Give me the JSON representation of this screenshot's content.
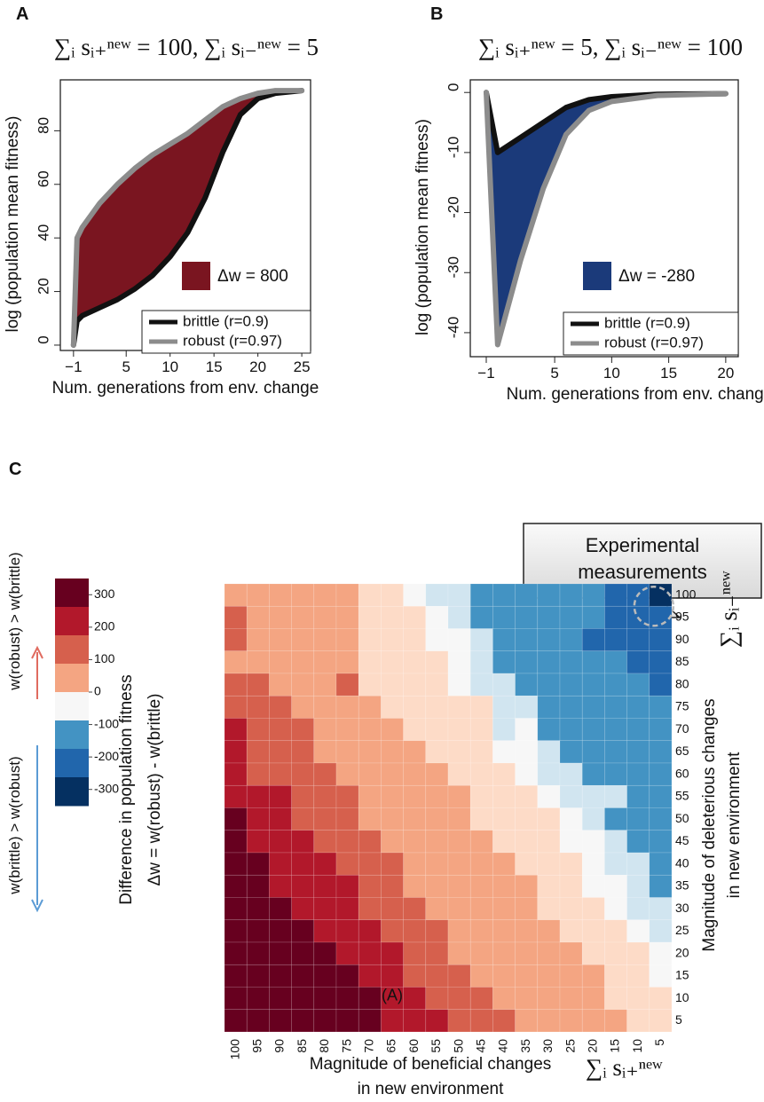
{
  "chart_data": [
    {
      "type": "line",
      "panel_label": "A",
      "title": "∑ᵢ sᵢ₊ⁿᵉʷ = 100, ∑ᵢ sᵢ₋ⁿᵉʷ = 5",
      "xlabel": "Num. generations from env. change",
      "ylabel": "log (population mean fitness)",
      "x": [
        -1,
        -0.6,
        0,
        2,
        4,
        6,
        8,
        10,
        12,
        14,
        16,
        18,
        20,
        22,
        25
      ],
      "series": [
        {
          "name": "brittle (r=0.9)",
          "color": "#111111",
          "values": [
            0,
            9,
            11,
            14,
            17,
            21,
            26,
            33,
            42,
            55,
            72,
            86,
            92,
            94,
            95
          ]
        },
        {
          "name": "robust (r=0.97)",
          "color": "#8c8c8c",
          "values": [
            0,
            40,
            44,
            53,
            60,
            66,
            71,
            75,
            79,
            84,
            89,
            92,
            94,
            95,
            95
          ]
        }
      ],
      "fill_color": "#7a1520",
      "annotation": "Δw = 800",
      "xlim": [
        -2.5,
        26
      ],
      "ylim": [
        -2,
        99
      ],
      "xticks": [
        {
          "value": -1,
          "label": "−1"
        },
        5,
        10,
        15,
        20,
        25
      ],
      "yticks": [
        0,
        20,
        40,
        60,
        80
      ]
    },
    {
      "type": "line",
      "panel_label": "B",
      "title": "∑ᵢ sᵢ₊ⁿᵉʷ = 5, ∑ᵢ sᵢ₋ⁿᵉʷ = 100",
      "xlabel": "Num. generations from env. change",
      "ylabel": "log (population mean fitness)",
      "x": [
        -1,
        0,
        2,
        4,
        6,
        8,
        10,
        14,
        20
      ],
      "series": [
        {
          "name": "brittle (r=0.9)",
          "color": "#111111",
          "values": [
            0,
            -10,
            -7.5,
            -5,
            -2.5,
            -1.2,
            -0.7,
            -0.3,
            -0.2
          ]
        },
        {
          "name": "robust (r=0.97)",
          "color": "#8c8c8c",
          "values": [
            0,
            -42,
            -28,
            -16,
            -7,
            -3,
            -1.5,
            -0.5,
            -0.2
          ]
        }
      ],
      "fill_color": "#1b3a7a",
      "annotation": "Δw = -280",
      "xlim": [
        -2.4,
        21.1
      ],
      "ylim": [
        -44,
        2.1
      ],
      "xticks": [
        {
          "value": -1,
          "label": "−1"
        },
        5,
        10,
        15,
        20
      ],
      "yticks": [
        0,
        -10,
        -20,
        -30,
        -40
      ]
    },
    {
      "type": "heatmap",
      "panel_label": "C",
      "xcategories": [
        100,
        95,
        90,
        85,
        80,
        75,
        70,
        65,
        60,
        55,
        50,
        45,
        40,
        35,
        30,
        25,
        20,
        15,
        10,
        5
      ],
      "ycategories": [
        100,
        95,
        90,
        85,
        80,
        75,
        70,
        65,
        60,
        55,
        50,
        45,
        40,
        35,
        30,
        25,
        20,
        15,
        10,
        5
      ],
      "z": [
        [
          100,
          100,
          100,
          100,
          100,
          100,
          50,
          50,
          0,
          -50,
          -50,
          -100,
          -100,
          -100,
          -100,
          -100,
          -100,
          -200,
          -200,
          -300
        ],
        [
          175,
          100,
          100,
          100,
          100,
          100,
          50,
          50,
          50,
          0,
          -50,
          -100,
          -100,
          -100,
          -100,
          -100,
          -100,
          -200,
          -200,
          -200
        ],
        [
          175,
          100,
          100,
          100,
          100,
          100,
          50,
          50,
          50,
          0,
          0,
          -50,
          -100,
          -100,
          -100,
          -100,
          -200,
          -200,
          -200,
          -200
        ],
        [
          100,
          100,
          100,
          100,
          100,
          100,
          50,
          50,
          50,
          50,
          0,
          -50,
          -100,
          -100,
          -100,
          -100,
          -100,
          -100,
          -200,
          -200
        ],
        [
          175,
          175,
          100,
          100,
          100,
          175,
          50,
          50,
          50,
          50,
          0,
          -50,
          -50,
          -100,
          -100,
          -100,
          -100,
          -100,
          -100,
          -200
        ],
        [
          175,
          175,
          175,
          100,
          100,
          100,
          100,
          50,
          50,
          50,
          50,
          50,
          -50,
          -50,
          -100,
          -100,
          -100,
          -100,
          -100,
          -100
        ],
        [
          225,
          175,
          175,
          175,
          100,
          100,
          100,
          100,
          50,
          50,
          50,
          50,
          -50,
          0,
          -100,
          -100,
          -100,
          -100,
          -100,
          -100
        ],
        [
          225,
          175,
          175,
          175,
          100,
          100,
          100,
          100,
          100,
          50,
          50,
          50,
          0,
          0,
          -50,
          -100,
          -100,
          -100,
          -100,
          -100
        ],
        [
          225,
          175,
          175,
          175,
          175,
          100,
          100,
          100,
          100,
          100,
          50,
          50,
          50,
          0,
          -50,
          -50,
          -100,
          -100,
          -100,
          -100
        ],
        [
          225,
          225,
          225,
          175,
          175,
          175,
          100,
          100,
          100,
          100,
          100,
          50,
          50,
          50,
          0,
          -50,
          -50,
          -50,
          -100,
          -100
        ],
        [
          300,
          225,
          225,
          175,
          175,
          175,
          100,
          100,
          100,
          100,
          100,
          50,
          50,
          50,
          50,
          0,
          -50,
          -100,
          -100,
          -100
        ],
        [
          300,
          225,
          225,
          225,
          175,
          175,
          175,
          100,
          100,
          100,
          100,
          100,
          50,
          50,
          50,
          0,
          0,
          -50,
          -100,
          -100
        ],
        [
          300,
          300,
          225,
          225,
          225,
          175,
          175,
          175,
          100,
          100,
          100,
          100,
          100,
          50,
          50,
          50,
          0,
          -50,
          -50,
          -100
        ],
        [
          300,
          300,
          225,
          225,
          225,
          225,
          175,
          175,
          100,
          100,
          100,
          100,
          100,
          100,
          50,
          50,
          0,
          0,
          -50,
          -100
        ],
        [
          300,
          300,
          300,
          225,
          225,
          225,
          175,
          175,
          175,
          100,
          100,
          100,
          100,
          100,
          50,
          50,
          50,
          0,
          -50,
          -50
        ],
        [
          300,
          300,
          300,
          300,
          225,
          225,
          225,
          175,
          175,
          175,
          100,
          100,
          100,
          100,
          100,
          50,
          50,
          50,
          0,
          -50
        ],
        [
          300,
          300,
          300,
          300,
          300,
          225,
          225,
          225,
          175,
          175,
          100,
          100,
          100,
          100,
          100,
          100,
          50,
          50,
          50,
          0
        ],
        [
          300,
          300,
          300,
          300,
          300,
          300,
          225,
          225,
          175,
          175,
          175,
          100,
          100,
          100,
          100,
          100,
          100,
          50,
          50,
          0
        ],
        [
          300,
          300,
          300,
          300,
          300,
          300,
          300,
          225,
          225,
          175,
          175,
          175,
          100,
          100,
          100,
          100,
          100,
          50,
          50,
          50
        ],
        [
          300,
          300,
          300,
          300,
          300,
          300,
          300,
          225,
          225,
          225,
          175,
          175,
          175,
          100,
          100,
          100,
          100,
          100,
          50,
          50
        ]
      ],
      "color_stops": [
        {
          "value": 300,
          "color": "#67001f"
        },
        {
          "value": 225,
          "color": "#b2182b"
        },
        {
          "value": 175,
          "color": "#d6604d"
        },
        {
          "value": 100,
          "color": "#f4a582"
        },
        {
          "value": 50,
          "color": "#fddbc7"
        },
        {
          "value": 0,
          "color": "#f7f7f7"
        },
        {
          "value": -50,
          "color": "#d1e5f0"
        },
        {
          "value": -100,
          "color": "#4393c3"
        },
        {
          "value": -200,
          "color": "#2166ac"
        },
        {
          "value": -300,
          "color": "#053061"
        }
      ],
      "colorbar": {
        "title": "Δw",
        "colors": [
          "#67001f",
          "#b2182b",
          "#d6604d",
          "#f4a582",
          "#f7f7f7",
          "#4393c3",
          "#2166ac",
          "#053061"
        ],
        "zlim": [
          -350,
          350
        ],
        "ticks": [
          300,
          200,
          100,
          0,
          -100,
          -200,
          -300
        ]
      },
      "xlabel": [
        "Magnitude of beneficial changes",
        "in new environment"
      ],
      "xlabel_formula": "∑ᵢ sᵢ₊ⁿᵉʷ",
      "ylabel": [
        "Magnitude of deleterious changes",
        "in new environment"
      ],
      "ylabel_formula": "∑ᵢ sᵢ₋ⁿᵉʷ",
      "side_label": [
        "Difference in population fitness",
        "Δw = w(robust) - w(brittle)"
      ],
      "arrow_up_label": "w(robust) > w(brittle)",
      "arrow_down_label": "w(brittle) > w(robust)",
      "annotation": "(A)",
      "callout": [
        "Experimental",
        "measurements"
      ]
    }
  ]
}
